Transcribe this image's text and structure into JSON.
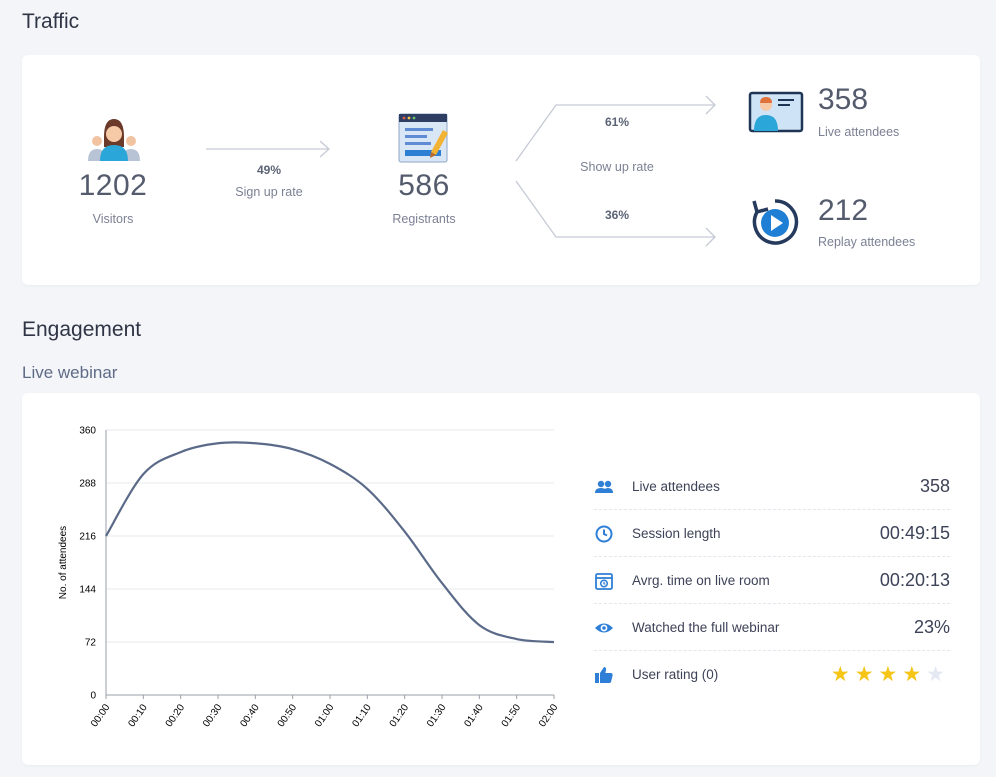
{
  "traffic": {
    "title": "Traffic",
    "visitors": {
      "value": "1202",
      "label": "Visitors"
    },
    "signup": {
      "pct": "49%",
      "label": "Sign up rate"
    },
    "registrants": {
      "value": "586",
      "label": "Registrants"
    },
    "show_up": {
      "label": "Show up rate",
      "live_pct": "61%",
      "replay_pct": "36%"
    },
    "live": {
      "value": "358",
      "label": "Live attendees"
    },
    "replay": {
      "value": "212",
      "label": "Replay attendees"
    }
  },
  "engagement": {
    "title": "Engagement",
    "subtitle": "Live webinar",
    "stats": [
      {
        "icon": "people-icon",
        "label": "Live attendees",
        "value": "358"
      },
      {
        "icon": "clock-icon",
        "label": "Session length",
        "value": "00:49:15"
      },
      {
        "icon": "calendar-clock-icon",
        "label": "Avrg. time on live room",
        "value": "00:20:13"
      },
      {
        "icon": "eye-icon",
        "label": "Watched the full webinar",
        "value": "23%"
      },
      {
        "icon": "thumbs-up-icon",
        "label": "User rating (0)",
        "rating": 4,
        "max": 5
      }
    ]
  },
  "colors": {
    "accent": "#2f7fd6",
    "line": "#5a6a88",
    "star": "#f5c518"
  },
  "chart_data": {
    "type": "line",
    "ylabel": "No. of attendees",
    "xlabel": "",
    "ylim": [
      0,
      360
    ],
    "yticks": [
      0,
      72,
      144,
      216,
      288,
      360
    ],
    "categories": [
      "00:00",
      "00:10",
      "00:20",
      "00:30",
      "00:40",
      "00:50",
      "01:00",
      "01:10",
      "01:20",
      "01:30",
      "01:40",
      "01:50",
      "02:00"
    ],
    "series": [
      {
        "values": [
          216,
          300,
          330,
          342,
          342,
          334,
          314,
          280,
          222,
          152,
          95,
          76,
          72
        ]
      }
    ],
    "grid": true
  }
}
